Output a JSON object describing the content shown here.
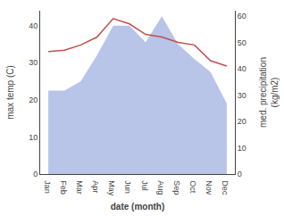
{
  "chart_data": {
    "type": "line",
    "xlabel": "date (month)",
    "ylabel": "max temp (C)",
    "y2label": "med. precipitation\n(kg/m2)",
    "categories": [
      "Jan",
      "Feb",
      "Mar",
      "Apr",
      "May",
      "Jun",
      "Jul",
      "Aug",
      "Sep",
      "Oct",
      "Nov",
      "Dec"
    ],
    "series": [
      {
        "type": "area",
        "color": "#b8c4e8",
        "values": [
          22.5,
          22.5,
          25,
          32,
          40,
          40,
          35.5,
          42.5,
          35,
          31,
          27.5,
          19
        ]
      },
      {
        "type": "line",
        "axis": "y2",
        "color": "#c0504d",
        "values": [
          46.5,
          47,
          49,
          52,
          59,
          57,
          53,
          52,
          50,
          49,
          43,
          41
        ]
      }
    ],
    "ylim": [
      0,
      44
    ],
    "yticks": [
      0,
      10,
      20,
      30,
      40
    ],
    "y2lim": [
      0,
      62
    ],
    "y2ticks": [
      0,
      10,
      20,
      30,
      40,
      50,
      60
    ],
    "grid": false
  }
}
